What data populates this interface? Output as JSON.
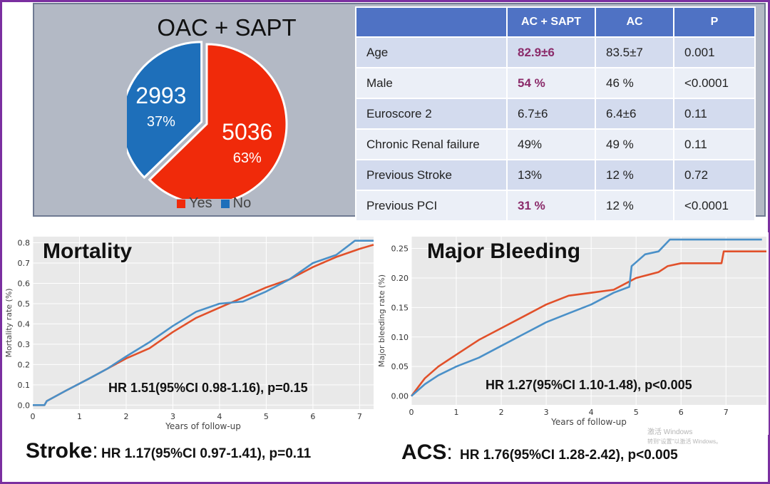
{
  "pie": {
    "title": "OAC + SAPT",
    "legend": [
      {
        "label": "Yes",
        "color": "#f02a0a"
      },
      {
        "label": "No",
        "color": "#1e6fba"
      }
    ]
  },
  "table": {
    "headers": [
      "",
      "AC + SAPT",
      "AC",
      "P"
    ],
    "rows": [
      {
        "label": "Age",
        "ac_sapt": "82.9±6",
        "ac": "83.5±7",
        "p": "0.001",
        "highlight": true
      },
      {
        "label": "Male",
        "ac_sapt": "54 %",
        "ac": "46 %",
        "p": "<0.0001",
        "highlight": true
      },
      {
        "label": "Euroscore 2",
        "ac_sapt": "6.7±6",
        "ac": "6.4±6",
        "p": "0.11",
        "highlight": false
      },
      {
        "label": "Chronic Renal failure",
        "ac_sapt": "49%",
        "ac": "49 %",
        "p": "0.11",
        "highlight": false
      },
      {
        "label": "Previous Stroke",
        "ac_sapt": "13%",
        "ac": "12 %",
        "p": "0.72",
        "highlight": false
      },
      {
        "label": "Previous PCI",
        "ac_sapt": "31 %",
        "ac": "12 %",
        "p": "<0.0001",
        "highlight": true
      }
    ]
  },
  "chart_data": [
    {
      "type": "pie",
      "title": "OAC + SAPT",
      "slices": [
        {
          "label": "Yes",
          "value": 5036,
          "pct": "63%",
          "color": "#f02a0a"
        },
        {
          "label": "No",
          "value": 2993,
          "pct": "37%",
          "color": "#1e6fba"
        }
      ]
    },
    {
      "type": "line",
      "title": "Mortality",
      "xlabel": "Years of follow-up",
      "ylabel": "Mortality rate (%)",
      "xlim": [
        0,
        7.3
      ],
      "ylim": [
        -0.02,
        0.83
      ],
      "xticks": [
        "0",
        "1",
        "2",
        "3",
        "4",
        "5",
        "6",
        "7"
      ],
      "yticks": [
        "0.0",
        "0.1",
        "0.2",
        "0.3",
        "0.4",
        "0.5",
        "0.6",
        "0.7",
        "0.8"
      ],
      "annotation": "HR 1.51(95%CI 0.98-1.16), p=0.15",
      "series": [
        {
          "name": "OAC + SAPT",
          "color": "#e1502a",
          "x": [
            0,
            0.25,
            0.3,
            0.7,
            1.2,
            1.6,
            2.0,
            2.5,
            3.0,
            3.5,
            4.0,
            4.5,
            5.0,
            5.5,
            6.0,
            6.5,
            7.0,
            7.3
          ],
          "y": [
            0,
            0,
            0.02,
            0.07,
            0.13,
            0.18,
            0.23,
            0.28,
            0.36,
            0.43,
            0.48,
            0.53,
            0.58,
            0.62,
            0.68,
            0.73,
            0.77,
            0.79
          ]
        },
        {
          "name": "AC",
          "color": "#4a90c8",
          "x": [
            0,
            0.25,
            0.3,
            0.7,
            1.2,
            1.6,
            2.0,
            2.5,
            3.0,
            3.5,
            4.0,
            4.5,
            5.0,
            5.5,
            6.0,
            6.5,
            6.9,
            7.3
          ],
          "y": [
            0,
            0,
            0.02,
            0.07,
            0.13,
            0.18,
            0.24,
            0.31,
            0.39,
            0.46,
            0.5,
            0.51,
            0.56,
            0.62,
            0.7,
            0.74,
            0.81,
            0.81
          ]
        }
      ]
    },
    {
      "type": "line",
      "title": "Major Bleeding",
      "xlabel": "Years of follow-up",
      "ylabel": "Major bleeding rate (%)",
      "xlim": [
        0,
        7.9
      ],
      "ylim": [
        -0.015,
        0.27
      ],
      "xticks": [
        "0",
        "1",
        "2",
        "3",
        "4",
        "5",
        "6",
        "7"
      ],
      "yticks": [
        "0.00",
        "0.05",
        "0.10",
        "0.15",
        "0.20",
        "0.25"
      ],
      "annotation": "HR 1.27(95%CI 1.10-1.48), p<0.005",
      "series": [
        {
          "name": "OAC + SAPT",
          "color": "#e1502a",
          "x": [
            0,
            0.3,
            0.6,
            1.0,
            1.5,
            2.0,
            2.5,
            3.0,
            3.5,
            4.0,
            4.5,
            5.0,
            5.5,
            5.7,
            6.0,
            6.9,
            6.95,
            7.9
          ],
          "y": [
            0,
            0.03,
            0.05,
            0.07,
            0.095,
            0.115,
            0.135,
            0.155,
            0.17,
            0.175,
            0.18,
            0.2,
            0.21,
            0.22,
            0.225,
            0.225,
            0.245,
            0.245
          ]
        },
        {
          "name": "AC",
          "color": "#4a90c8",
          "x": [
            0,
            0.3,
            0.6,
            1.0,
            1.5,
            2.0,
            2.5,
            3.0,
            3.5,
            4.0,
            4.5,
            4.85,
            4.9,
            5.2,
            5.5,
            5.75,
            7.8
          ],
          "y": [
            0,
            0.02,
            0.035,
            0.05,
            0.065,
            0.085,
            0.105,
            0.125,
            0.14,
            0.155,
            0.175,
            0.185,
            0.22,
            0.24,
            0.245,
            0.265,
            0.265
          ]
        }
      ]
    }
  ],
  "stroke": {
    "label": "Stroke",
    "colon": ":",
    "hr": "HR 1.17(95%CI 0.97-1.41), p=0.11"
  },
  "acs": {
    "label": "ACS",
    "colon": ":",
    "hr": "HR 1.76(95%CI 1.28-2.42), p<0.005"
  },
  "watermark": {
    "line1": "激活 Windows",
    "line2": "转到“设置”以激活 Windows。"
  }
}
